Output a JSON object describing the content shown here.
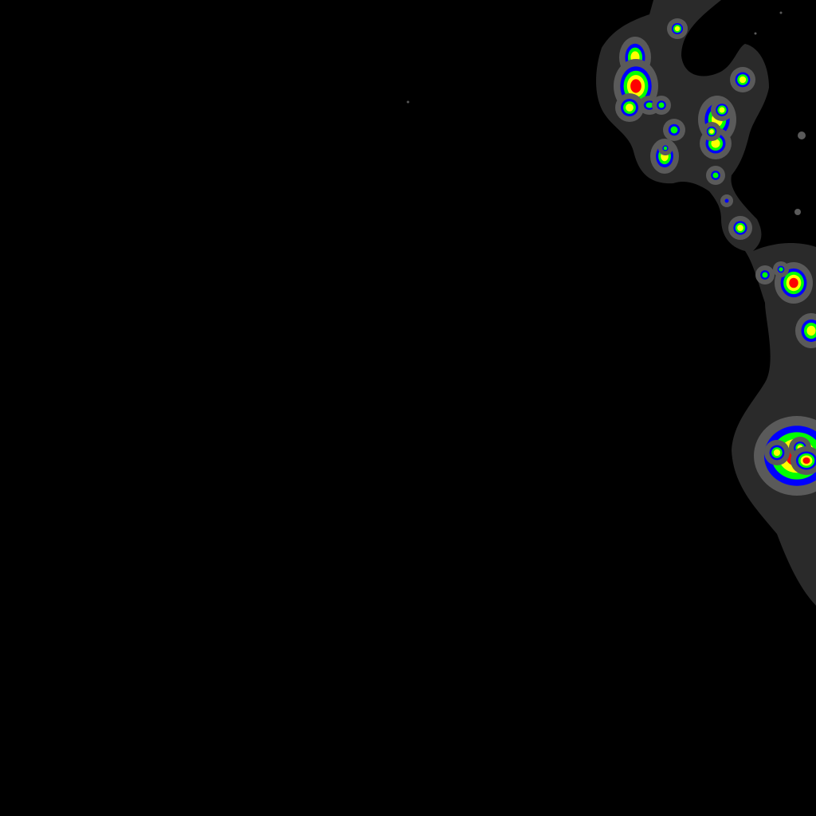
{
  "map": {
    "kind": "density-heatmap-tile",
    "background_color": "#000000",
    "palette": {
      "halo": "#2a2a2a",
      "edge": "#5a5a5a",
      "low": "#0000ff",
      "mid": "#00ff00",
      "high": "#ffff00",
      "peak": "#ff0000"
    },
    "levels": [
      "halo",
      "edge",
      "low",
      "mid",
      "high",
      "peak"
    ],
    "labels": []
  }
}
